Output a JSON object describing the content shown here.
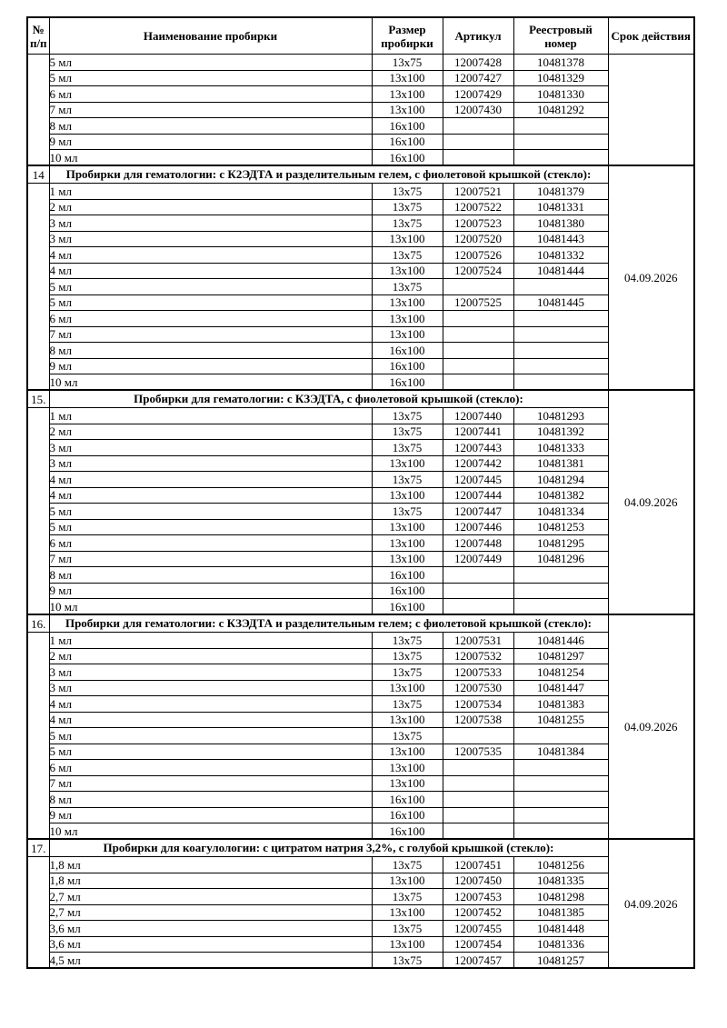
{
  "table": {
    "header": {
      "col_num": "№ п/п",
      "col_name": "Наименование пробирки",
      "col_size": "Размер пробирки",
      "col_article": "Артикул",
      "col_reg": "Реестровый номер",
      "col_validity": "Срок действия"
    },
    "sections": [
      {
        "number": "",
        "title": null,
        "validity": "",
        "rows": [
          [
            "5 мл",
            "13x75",
            "12007428",
            "10481378"
          ],
          [
            "5 мл",
            "13x100",
            "12007427",
            "10481329"
          ],
          [
            "6 мл",
            "13x100",
            "12007429",
            "10481330"
          ],
          [
            "7 мл",
            "13x100",
            "12007430",
            "10481292"
          ],
          [
            "8 мл",
            "16x100",
            "",
            ""
          ],
          [
            "9 мл",
            "16x100",
            "",
            ""
          ],
          [
            "10 мл",
            "16x100",
            "",
            ""
          ]
        ]
      },
      {
        "number": "14",
        "title": "Пробирки для гематологии: с К2ЭДТА и разделительным гелем, с фиолетовой крышкой (стекло):",
        "validity": "04.09.2026",
        "rows": [
          [
            "1 мл",
            "13x75",
            "12007521",
            "10481379"
          ],
          [
            "2 мл",
            "13x75",
            "12007522",
            "10481331"
          ],
          [
            "3 мл",
            "13x75",
            "12007523",
            "10481380"
          ],
          [
            "3 мл",
            "13x100",
            "12007520",
            "10481443"
          ],
          [
            "4 мл",
            "13x75",
            "12007526",
            "10481332"
          ],
          [
            "4 мл",
            "13x100",
            "12007524",
            "10481444"
          ],
          [
            "5 мл",
            "13x75",
            "",
            ""
          ],
          [
            "5 мл",
            "13x100",
            "12007525",
            "10481445"
          ],
          [
            "6 мл",
            "13x100",
            "",
            ""
          ],
          [
            "7 мл",
            "13x100",
            "",
            ""
          ],
          [
            "8 мл",
            "16x100",
            "",
            ""
          ],
          [
            "9 мл",
            "16x100",
            "",
            ""
          ],
          [
            "10 мл",
            "16x100",
            "",
            ""
          ]
        ]
      },
      {
        "number": "15.",
        "title": "Пробирки для гематологии: с КЗЭДТА, с фиолетовой крышкой (стекло):",
        "validity": "04.09.2026",
        "rows": [
          [
            "1 мл",
            "13x75",
            "12007440",
            "10481293"
          ],
          [
            "2 мл",
            "13x75",
            "12007441",
            "10481392"
          ],
          [
            "3 мл",
            "13x75",
            "12007443",
            "10481333"
          ],
          [
            "3 мл",
            "13x100",
            "12007442",
            "10481381"
          ],
          [
            "4 мл",
            "13x75",
            "12007445",
            "10481294"
          ],
          [
            "4 мл",
            "13x100",
            "12007444",
            "10481382"
          ],
          [
            "5 мл",
            "13x75",
            "12007447",
            "10481334"
          ],
          [
            "5 мл",
            "13x100",
            "12007446",
            "10481253"
          ],
          [
            "6 мл",
            "13x100",
            "12007448",
            "10481295"
          ],
          [
            "7 мл",
            "13x100",
            "12007449",
            "10481296"
          ],
          [
            "8 мл",
            "16x100",
            "",
            ""
          ],
          [
            "9 мл",
            "16x100",
            "",
            ""
          ],
          [
            "10 мл",
            "16x100",
            "",
            ""
          ]
        ]
      },
      {
        "number": "16.",
        "title": "Пробирки для гематологии: с КЗЭДТА и разделительным гелем; с фиолетовой крышкой (стекло):",
        "validity": "04.09.2026",
        "rows": [
          [
            "1 мл",
            "13x75",
            "12007531",
            "10481446"
          ],
          [
            "2 мл",
            "13x75",
            "12007532",
            "10481297"
          ],
          [
            "3 мл",
            "13x75",
            "12007533",
            "10481254"
          ],
          [
            "3 мл",
            "13x100",
            "12007530",
            "10481447"
          ],
          [
            "4 мл",
            "13x75",
            "12007534",
            "10481383"
          ],
          [
            "4 мл",
            "13x100",
            "12007538",
            "10481255"
          ],
          [
            "5 мл",
            "13x75",
            "",
            ""
          ],
          [
            "5 мл",
            "13x100",
            "12007535",
            "10481384"
          ],
          [
            "6 мл",
            "13x100",
            "",
            ""
          ],
          [
            "7 мл",
            "13x100",
            "",
            ""
          ],
          [
            "8 мл",
            "16x100",
            "",
            ""
          ],
          [
            "9 мл",
            "16x100",
            "",
            ""
          ],
          [
            "10 мл",
            "16x100",
            "",
            ""
          ]
        ]
      },
      {
        "number": "17.",
        "title": "Пробирки для коагулологии: с цитратом натрия 3,2%, с голубой крышкой (стекло):",
        "validity": "04.09.2026",
        "rows": [
          [
            "1,8 мл",
            "13x75",
            "12007451",
            "10481256"
          ],
          [
            "1,8 мл",
            "13x100",
            "12007450",
            "10481335"
          ],
          [
            "2,7 мл",
            "13x75",
            "12007453",
            "10481298"
          ],
          [
            "2,7 мл",
            "13x100",
            "12007452",
            "10481385"
          ],
          [
            "3,6 мл",
            "13x75",
            "12007455",
            "10481448"
          ],
          [
            "3,6 мл",
            "13x100",
            "12007454",
            "10481336"
          ],
          [
            "4,5 мл",
            "13x75",
            "12007457",
            "10481257"
          ]
        ]
      }
    ]
  }
}
